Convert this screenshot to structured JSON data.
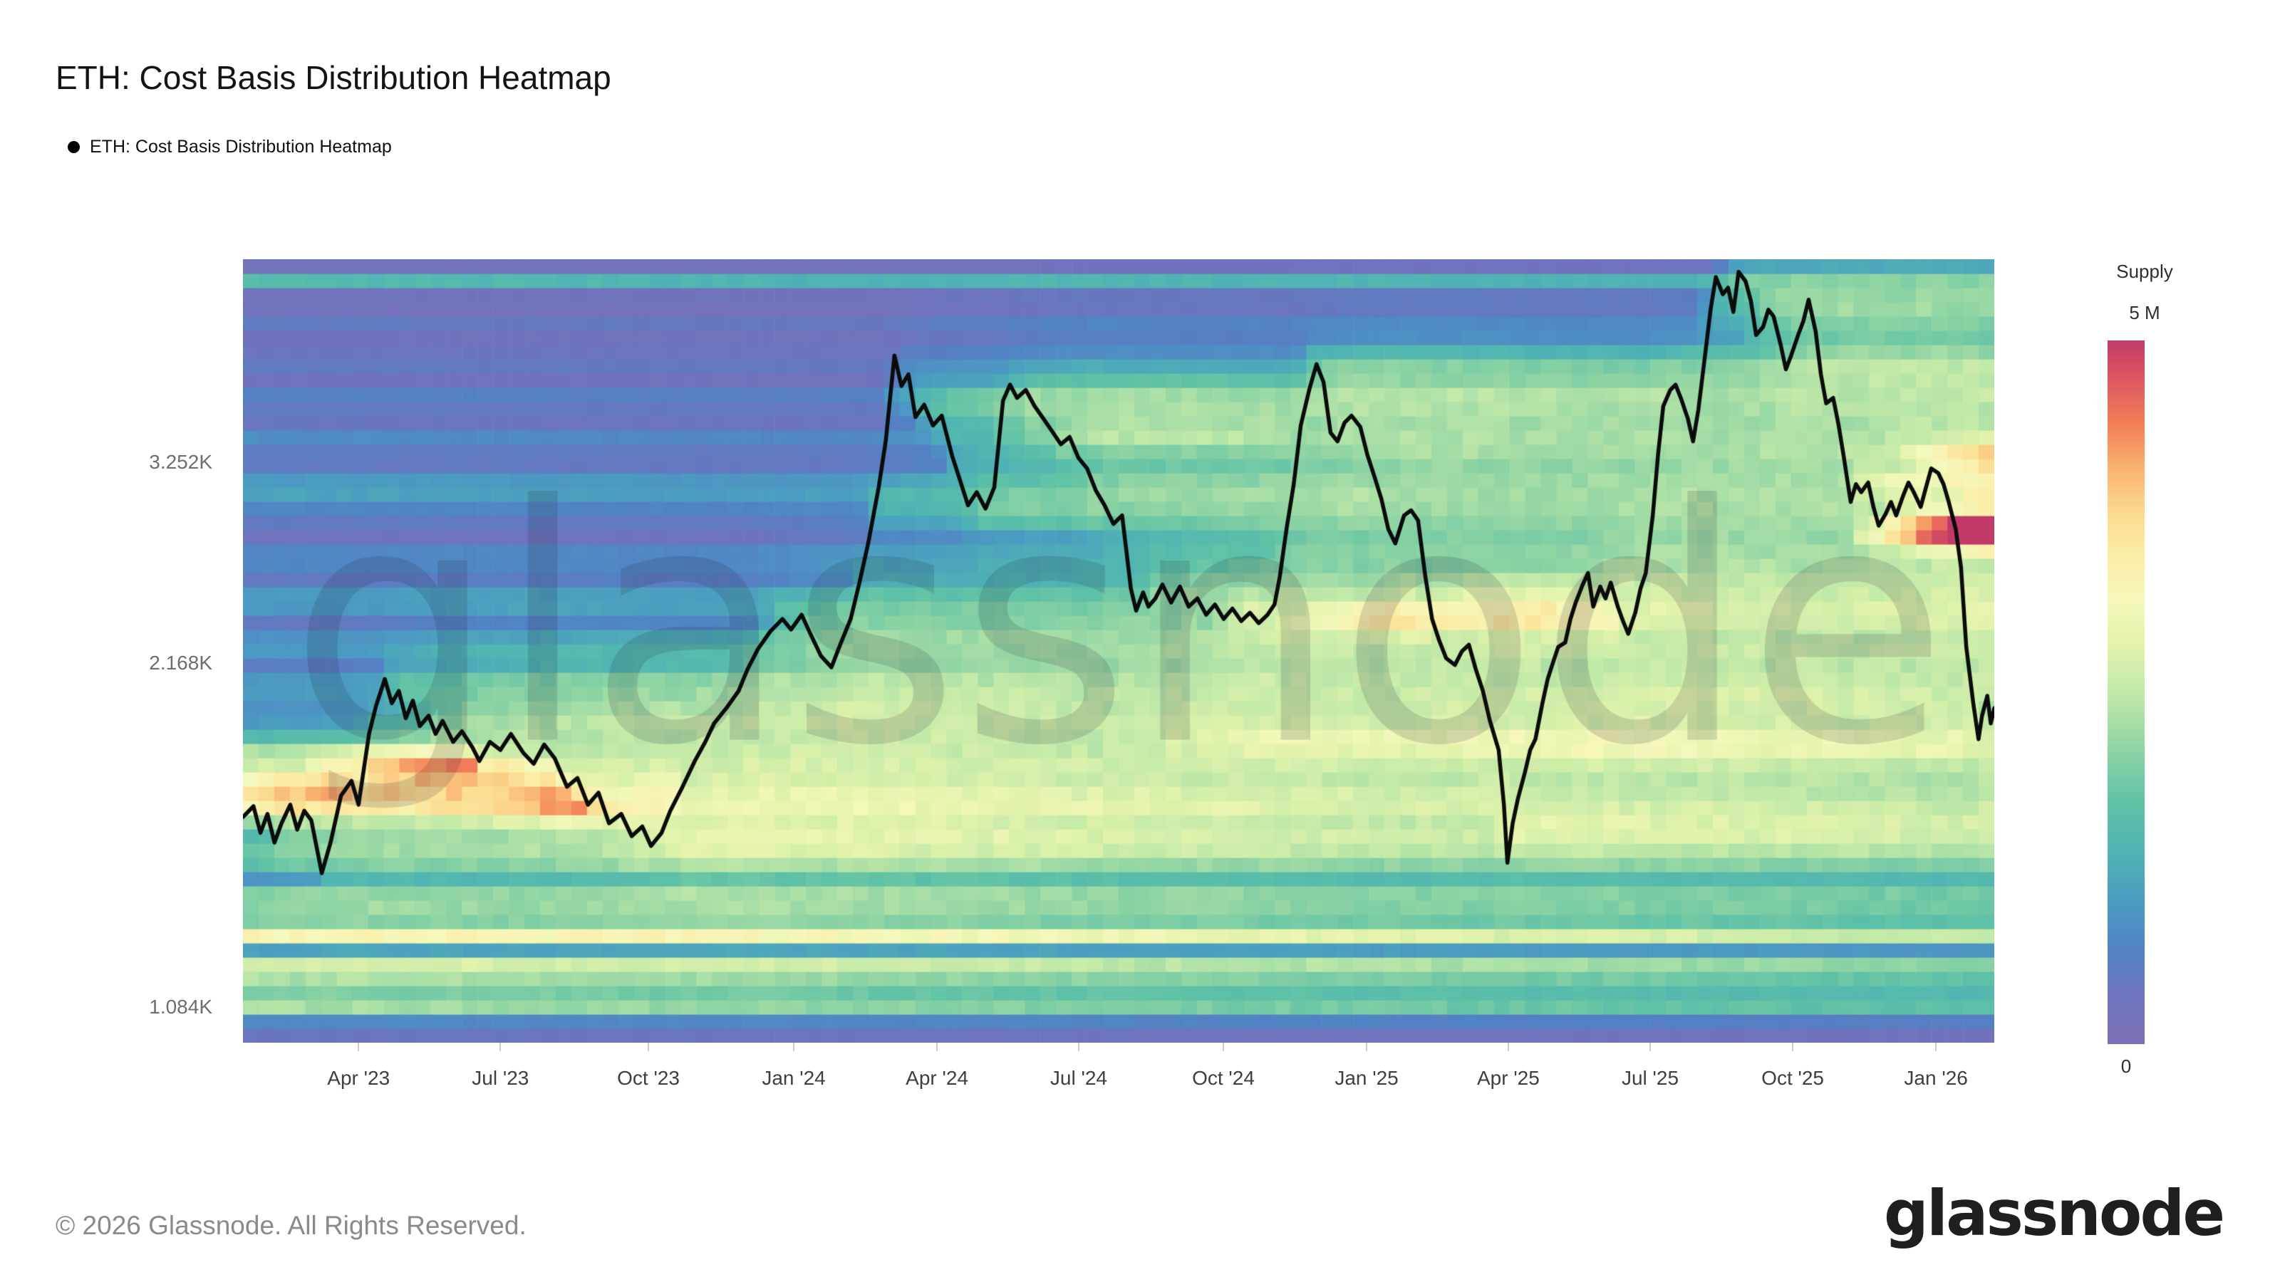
{
  "page": {
    "title": "ETH: Cost Basis Distribution Heatmap",
    "legend_label": "ETH: Cost Basis Distribution Heatmap",
    "watermark": "glassnode",
    "copyright": "© 2026 Glassnode. All Rights Reserved.",
    "brand_logo": "glassnode"
  },
  "colorbar": {
    "label": "Supply",
    "max_label": "5 M",
    "min_label": "0"
  },
  "chart_data": {
    "type": "heatmap",
    "title": "ETH: Cost Basis Distribution Heatmap",
    "x_domain": [
      "2023-01-20",
      "2026-02-25"
    ],
    "x_ticks": [
      {
        "label": "Apr '23",
        "t": 0.066
      },
      {
        "label": "Jul '23",
        "t": 0.147
      },
      {
        "label": "Oct '23",
        "t": 0.2315
      },
      {
        "label": "Jan '24",
        "t": 0.3145
      },
      {
        "label": "Apr '24",
        "t": 0.3963
      },
      {
        "label": "Jul '24",
        "t": 0.4772
      },
      {
        "label": "Oct '24",
        "t": 0.5598
      },
      {
        "label": "Jan '25",
        "t": 0.6416
      },
      {
        "label": "Apr '25",
        "t": 0.7225
      },
      {
        "label": "Jul '25",
        "t": 0.8035
      },
      {
        "label": "Oct '25",
        "t": 0.8849
      },
      {
        "label": "Jan '26",
        "t": 0.9667
      }
    ],
    "y_scale": "log",
    "y_domain": [
      1009,
      4893
    ],
    "y_ticks": [
      {
        "label": "1.084K",
        "value": 1084
      },
      {
        "label": "2.168K",
        "value": 2168
      },
      {
        "label": "3.252K",
        "value": 3252
      }
    ],
    "legend_position": "right",
    "grid": false,
    "supply_max_millions": 5,
    "colormap_stops": [
      [
        0.0,
        "#7a70b6"
      ],
      [
        0.07,
        "#6e74bd"
      ],
      [
        0.13,
        "#5381c4"
      ],
      [
        0.2,
        "#4b9ac2"
      ],
      [
        0.27,
        "#4fb3b4"
      ],
      [
        0.34,
        "#5ec1a6"
      ],
      [
        0.42,
        "#8fd4a4"
      ],
      [
        0.5,
        "#c2e9a8"
      ],
      [
        0.57,
        "#e2f3ab"
      ],
      [
        0.63,
        "#f5f8bc"
      ],
      [
        0.7,
        "#fbeca5"
      ],
      [
        0.76,
        "#fbd78d"
      ],
      [
        0.82,
        "#f9b170"
      ],
      [
        0.88,
        "#f28057"
      ],
      [
        0.94,
        "#e05a60"
      ],
      [
        1.0,
        "#c23a68"
      ]
    ],
    "price_line_eth_usd": [
      [
        0.0,
        1590
      ],
      [
        0.006,
        1625
      ],
      [
        0.01,
        1540
      ],
      [
        0.014,
        1600
      ],
      [
        0.018,
        1510
      ],
      [
        0.022,
        1570
      ],
      [
        0.027,
        1630
      ],
      [
        0.031,
        1550
      ],
      [
        0.035,
        1610
      ],
      [
        0.039,
        1580
      ],
      [
        0.045,
        1420
      ],
      [
        0.05,
        1510
      ],
      [
        0.056,
        1660
      ],
      [
        0.062,
        1710
      ],
      [
        0.066,
        1630
      ],
      [
        0.072,
        1880
      ],
      [
        0.076,
        1990
      ],
      [
        0.081,
        2100
      ],
      [
        0.085,
        2000
      ],
      [
        0.089,
        2050
      ],
      [
        0.093,
        1940
      ],
      [
        0.097,
        2010
      ],
      [
        0.101,
        1910
      ],
      [
        0.106,
        1950
      ],
      [
        0.11,
        1880
      ],
      [
        0.114,
        1930
      ],
      [
        0.12,
        1850
      ],
      [
        0.125,
        1890
      ],
      [
        0.131,
        1830
      ],
      [
        0.135,
        1780
      ],
      [
        0.141,
        1850
      ],
      [
        0.147,
        1820
      ],
      [
        0.153,
        1880
      ],
      [
        0.16,
        1810
      ],
      [
        0.166,
        1770
      ],
      [
        0.172,
        1840
      ],
      [
        0.178,
        1790
      ],
      [
        0.185,
        1690
      ],
      [
        0.191,
        1720
      ],
      [
        0.197,
        1630
      ],
      [
        0.203,
        1670
      ],
      [
        0.209,
        1570
      ],
      [
        0.216,
        1600
      ],
      [
        0.222,
        1530
      ],
      [
        0.228,
        1560
      ],
      [
        0.233,
        1500
      ],
      [
        0.239,
        1540
      ],
      [
        0.244,
        1610
      ],
      [
        0.251,
        1690
      ],
      [
        0.258,
        1780
      ],
      [
        0.264,
        1850
      ],
      [
        0.269,
        1920
      ],
      [
        0.276,
        1980
      ],
      [
        0.283,
        2050
      ],
      [
        0.288,
        2140
      ],
      [
        0.294,
        2230
      ],
      [
        0.301,
        2310
      ],
      [
        0.308,
        2370
      ],
      [
        0.313,
        2320
      ],
      [
        0.319,
        2390
      ],
      [
        0.324,
        2300
      ],
      [
        0.33,
        2200
      ],
      [
        0.336,
        2150
      ],
      [
        0.341,
        2250
      ],
      [
        0.347,
        2370
      ],
      [
        0.352,
        2550
      ],
      [
        0.357,
        2760
      ],
      [
        0.363,
        3090
      ],
      [
        0.367,
        3390
      ],
      [
        0.372,
        4030
      ],
      [
        0.376,
        3790
      ],
      [
        0.38,
        3880
      ],
      [
        0.384,
        3560
      ],
      [
        0.389,
        3650
      ],
      [
        0.394,
        3500
      ],
      [
        0.399,
        3570
      ],
      [
        0.405,
        3290
      ],
      [
        0.409,
        3150
      ],
      [
        0.414,
        2980
      ],
      [
        0.419,
        3060
      ],
      [
        0.424,
        2960
      ],
      [
        0.429,
        3090
      ],
      [
        0.434,
        3680
      ],
      [
        0.438,
        3800
      ],
      [
        0.442,
        3700
      ],
      [
        0.447,
        3760
      ],
      [
        0.452,
        3640
      ],
      [
        0.457,
        3550
      ],
      [
        0.462,
        3460
      ],
      [
        0.467,
        3370
      ],
      [
        0.472,
        3420
      ],
      [
        0.477,
        3280
      ],
      [
        0.482,
        3210
      ],
      [
        0.487,
        3070
      ],
      [
        0.492,
        2980
      ],
      [
        0.497,
        2870
      ],
      [
        0.502,
        2920
      ],
      [
        0.507,
        2520
      ],
      [
        0.51,
        2410
      ],
      [
        0.514,
        2500
      ],
      [
        0.517,
        2430
      ],
      [
        0.521,
        2470
      ],
      [
        0.525,
        2540
      ],
      [
        0.53,
        2450
      ],
      [
        0.535,
        2530
      ],
      [
        0.54,
        2430
      ],
      [
        0.545,
        2470
      ],
      [
        0.55,
        2390
      ],
      [
        0.555,
        2440
      ],
      [
        0.56,
        2370
      ],
      [
        0.565,
        2420
      ],
      [
        0.57,
        2360
      ],
      [
        0.575,
        2400
      ],
      [
        0.58,
        2350
      ],
      [
        0.585,
        2390
      ],
      [
        0.589,
        2440
      ],
      [
        0.592,
        2580
      ],
      [
        0.596,
        2850
      ],
      [
        0.6,
        3110
      ],
      [
        0.604,
        3500
      ],
      [
        0.609,
        3770
      ],
      [
        0.613,
        3960
      ],
      [
        0.617,
        3820
      ],
      [
        0.621,
        3450
      ],
      [
        0.625,
        3390
      ],
      [
        0.629,
        3520
      ],
      [
        0.633,
        3570
      ],
      [
        0.638,
        3490
      ],
      [
        0.642,
        3300
      ],
      [
        0.646,
        3160
      ],
      [
        0.65,
        3020
      ],
      [
        0.654,
        2840
      ],
      [
        0.658,
        2760
      ],
      [
        0.663,
        2920
      ],
      [
        0.667,
        2950
      ],
      [
        0.671,
        2890
      ],
      [
        0.675,
        2590
      ],
      [
        0.679,
        2370
      ],
      [
        0.683,
        2270
      ],
      [
        0.687,
        2190
      ],
      [
        0.692,
        2160
      ],
      [
        0.696,
        2220
      ],
      [
        0.7,
        2250
      ],
      [
        0.704,
        2140
      ],
      [
        0.708,
        2050
      ],
      [
        0.712,
        1930
      ],
      [
        0.717,
        1820
      ],
      [
        0.72,
        1630
      ],
      [
        0.722,
        1450
      ],
      [
        0.725,
        1570
      ],
      [
        0.728,
        1650
      ],
      [
        0.732,
        1740
      ],
      [
        0.735,
        1820
      ],
      [
        0.738,
        1860
      ],
      [
        0.742,
        2000
      ],
      [
        0.745,
        2100
      ],
      [
        0.748,
        2170
      ],
      [
        0.751,
        2240
      ],
      [
        0.755,
        2260
      ],
      [
        0.758,
        2370
      ],
      [
        0.761,
        2450
      ],
      [
        0.765,
        2540
      ],
      [
        0.768,
        2600
      ],
      [
        0.771,
        2430
      ],
      [
        0.775,
        2530
      ],
      [
        0.778,
        2470
      ],
      [
        0.781,
        2550
      ],
      [
        0.785,
        2430
      ],
      [
        0.788,
        2360
      ],
      [
        0.791,
        2300
      ],
      [
        0.795,
        2400
      ],
      [
        0.798,
        2520
      ],
      [
        0.801,
        2600
      ],
      [
        0.805,
        2920
      ],
      [
        0.808,
        3300
      ],
      [
        0.811,
        3640
      ],
      [
        0.815,
        3760
      ],
      [
        0.818,
        3800
      ],
      [
        0.821,
        3700
      ],
      [
        0.825,
        3550
      ],
      [
        0.828,
        3390
      ],
      [
        0.831,
        3610
      ],
      [
        0.835,
        4050
      ],
      [
        0.838,
        4420
      ],
      [
        0.841,
        4720
      ],
      [
        0.845,
        4560
      ],
      [
        0.848,
        4620
      ],
      [
        0.851,
        4400
      ],
      [
        0.854,
        4770
      ],
      [
        0.858,
        4680
      ],
      [
        0.861,
        4500
      ],
      [
        0.864,
        4200
      ],
      [
        0.868,
        4270
      ],
      [
        0.871,
        4420
      ],
      [
        0.874,
        4360
      ],
      [
        0.878,
        4120
      ],
      [
        0.881,
        3920
      ],
      [
        0.884,
        4030
      ],
      [
        0.888,
        4200
      ],
      [
        0.891,
        4320
      ],
      [
        0.894,
        4510
      ],
      [
        0.898,
        4230
      ],
      [
        0.901,
        3880
      ],
      [
        0.904,
        3660
      ],
      [
        0.908,
        3700
      ],
      [
        0.911,
        3510
      ],
      [
        0.914,
        3290
      ],
      [
        0.918,
        3000
      ],
      [
        0.921,
        3110
      ],
      [
        0.924,
        3060
      ],
      [
        0.928,
        3120
      ],
      [
        0.931,
        2970
      ],
      [
        0.934,
        2860
      ],
      [
        0.938,
        2930
      ],
      [
        0.941,
        3000
      ],
      [
        0.944,
        2920
      ],
      [
        0.948,
        3040
      ],
      [
        0.951,
        3120
      ],
      [
        0.954,
        3060
      ],
      [
        0.958,
        2970
      ],
      [
        0.961,
        3090
      ],
      [
        0.964,
        3210
      ],
      [
        0.968,
        3180
      ],
      [
        0.971,
        3110
      ],
      [
        0.974,
        3000
      ],
      [
        0.978,
        2840
      ],
      [
        0.981,
        2630
      ],
      [
        0.984,
        2240
      ],
      [
        0.988,
        2000
      ],
      [
        0.991,
        1860
      ],
      [
        0.993,
        1950
      ],
      [
        0.996,
        2030
      ],
      [
        0.998,
        1920
      ],
      [
        1.0,
        1980
      ]
    ],
    "heatmap_model": {
      "cols": 112,
      "rows": 55,
      "seed": 7,
      "base_supply_profile": [
        [
          1010,
          0.55
        ],
        [
          1040,
          0.2
        ],
        [
          1070,
          1.5
        ],
        [
          1100,
          3.3
        ],
        [
          1130,
          1.4
        ],
        [
          1170,
          3.2
        ],
        [
          1210,
          0.7
        ],
        [
          1250,
          3.0
        ],
        [
          1300,
          1.5
        ],
        [
          1350,
          2.2
        ],
        [
          1400,
          0.8
        ],
        [
          1460,
          2.0
        ],
        [
          1520,
          1.3
        ],
        [
          1580,
          2.6
        ],
        [
          1650,
          3.3
        ],
        [
          1720,
          3.0
        ],
        [
          1800,
          2.5
        ],
        [
          1880,
          1.3
        ],
        [
          1960,
          0.7
        ],
        [
          2050,
          1.2
        ],
        [
          2150,
          0.55
        ],
        [
          2250,
          1.0
        ],
        [
          2350,
          0.5
        ],
        [
          2450,
          1.3
        ],
        [
          2560,
          0.45
        ],
        [
          2680,
          0.85
        ],
        [
          2800,
          0.35
        ],
        [
          2950,
          0.75
        ],
        [
          3100,
          1.35
        ],
        [
          3250,
          0.4
        ],
        [
          3400,
          0.8
        ],
        [
          3550,
          0.3
        ],
        [
          3700,
          0.7
        ],
        [
          3850,
          0.25
        ],
        [
          4000,
          0.6
        ],
        [
          4150,
          0.2
        ],
        [
          4300,
          0.55
        ],
        [
          4450,
          0.18
        ],
        [
          4600,
          0.4
        ],
        [
          4660,
          2.3
        ],
        [
          4740,
          0.5
        ],
        [
          4820,
          0.22
        ],
        [
          4893,
          0.12
        ]
      ],
      "global_decay_per_col": 0.9968,
      "churn_at_price": 0.3,
      "deposit_at_price": 0.62,
      "kernel_sigma_rows": 1.15,
      "wash_deposit": 0.05,
      "wash_sigma_rows": 5.5,
      "jitter_row": 0.14,
      "jitter_cell": 0.05,
      "accumulation_events": [
        [
          1640,
          0.0,
          0.07,
          0.28
        ],
        [
          1760,
          0.03,
          0.105,
          0.22
        ],
        [
          1620,
          0.13,
          0.23,
          0.1
        ],
        [
          1520,
          0.22,
          0.26,
          0.12
        ],
        [
          3650,
          0.37,
          0.43,
          0.09
        ],
        [
          3450,
          0.43,
          0.5,
          0.07
        ],
        [
          1850,
          0.49,
          0.6,
          0.05
        ],
        [
          2380,
          0.55,
          0.665,
          0.12
        ],
        [
          3950,
          0.6,
          0.625,
          0.1
        ],
        [
          3350,
          0.63,
          0.655,
          0.08
        ],
        [
          2520,
          0.66,
          0.72,
          0.09
        ],
        [
          2200,
          0.68,
          0.712,
          0.1
        ],
        [
          1560,
          0.714,
          0.736,
          0.18
        ],
        [
          1850,
          0.73,
          0.76,
          0.1
        ],
        [
          4480,
          0.832,
          0.89,
          0.13
        ],
        [
          3090,
          0.915,
          1.0,
          0.18
        ],
        [
          2830,
          0.925,
          1.0,
          0.55
        ],
        [
          2950,
          0.93,
          1.0,
          0.12
        ],
        [
          3300,
          0.952,
          1.0,
          0.25
        ]
      ]
    }
  }
}
